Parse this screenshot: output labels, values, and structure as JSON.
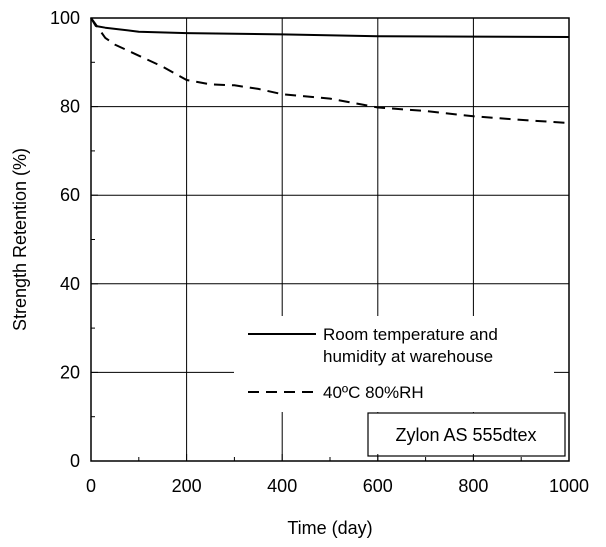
{
  "chart_data": {
    "type": "line",
    "title": "",
    "xlabel": "Time (day)",
    "ylabel": "Strength Retention (%)",
    "xlim": [
      0,
      1000
    ],
    "ylim": [
      0,
      100
    ],
    "xticks": [
      0,
      200,
      400,
      600,
      800,
      1000
    ],
    "yticks": [
      0,
      20,
      40,
      60,
      80,
      100
    ],
    "grid": true,
    "legend_position": "bottom-right",
    "series": [
      {
        "name": "Room temperature and humidity at warehouse",
        "legend_lines": [
          "Room temperature and",
          "humidity at warehouse"
        ],
        "style": "solid",
        "color": "#000000",
        "x": [
          0,
          10,
          30,
          100,
          200,
          400,
          600,
          800,
          1000
        ],
        "y": [
          100,
          98.2,
          97.8,
          96.9,
          96.6,
          96.3,
          95.9,
          95.8,
          95.7
        ]
      },
      {
        "name": "40ºC 80%RH",
        "legend_lines": [
          "40ºC 80%RH"
        ],
        "style": "dashed",
        "color": "#000000",
        "x": [
          0,
          10,
          30,
          50,
          80,
          100,
          150,
          200,
          250,
          300,
          350,
          400,
          500,
          600,
          700,
          800,
          900,
          1000
        ],
        "y": [
          100,
          98.5,
          95.5,
          94,
          92.5,
          91.5,
          89,
          86,
          85,
          84.8,
          84,
          82.8,
          81.8,
          79.8,
          79,
          77.8,
          77,
          76.3
        ]
      }
    ],
    "annotation": "Zylon AS 555dtex"
  }
}
